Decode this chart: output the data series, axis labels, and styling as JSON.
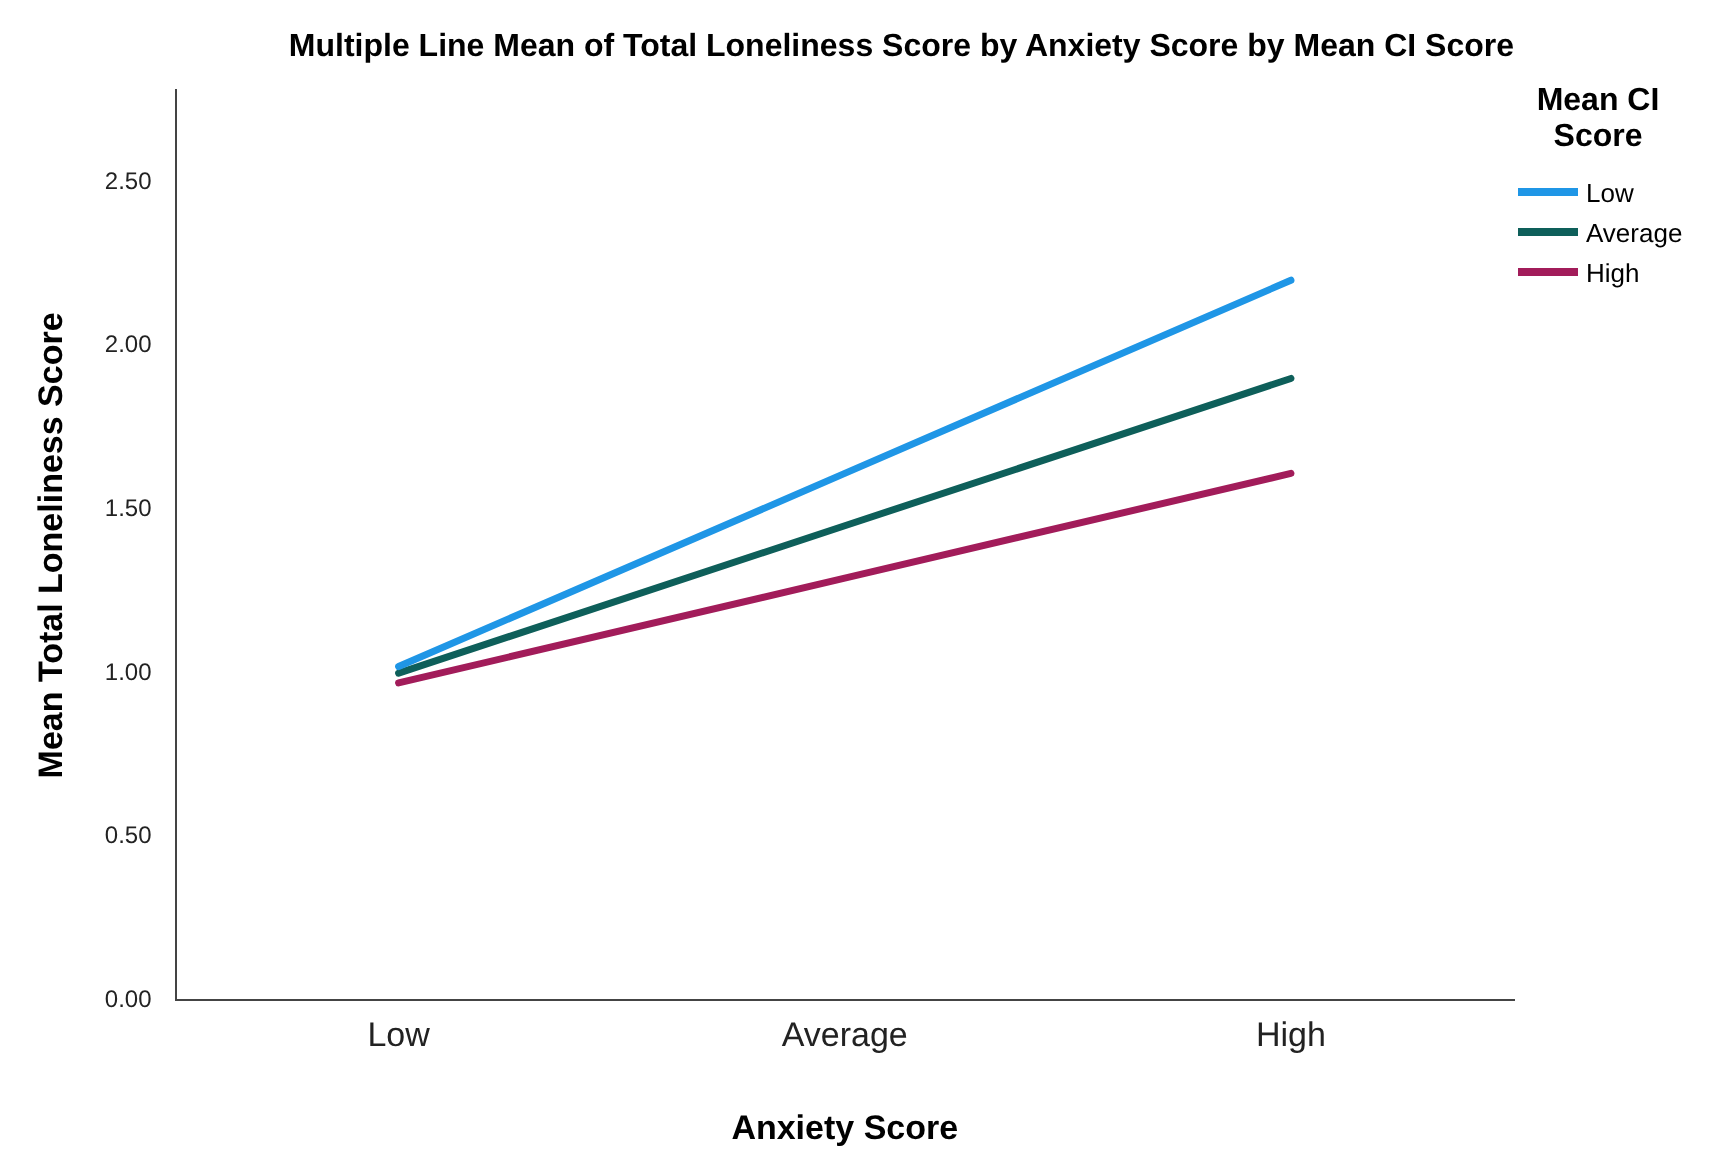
{
  "chart_data": {
    "type": "line",
    "title": "Multiple Line Mean of Total Loneliness Score by Anxiety Score by Mean CI Score",
    "xlabel": "Anxiety Score",
    "ylabel": "Mean Total Loneliness Score",
    "legend_title": "Mean CI Score",
    "categories": [
      "Low",
      "Average",
      "High"
    ],
    "series": [
      {
        "name": "Low",
        "color": "#1f96e6",
        "values": [
          1.02,
          1.61,
          2.2
        ]
      },
      {
        "name": "Average",
        "color": "#0e5f5a",
        "values": [
          1.0,
          1.45,
          1.9
        ]
      },
      {
        "name": "High",
        "color": "#a21c5a",
        "values": [
          0.97,
          1.29,
          1.61
        ]
      }
    ],
    "ylim": [
      0,
      2.78
    ],
    "yticks": [
      {
        "value": 0,
        "label": "0.00"
      },
      {
        "value": 0.5,
        "label": "0.50"
      },
      {
        "value": 1,
        "label": "1.00"
      },
      {
        "value": 1.5,
        "label": "1.50"
      },
      {
        "value": 2,
        "label": "2.00"
      },
      {
        "value": 2.5,
        "label": "2.50"
      }
    ],
    "grid": false,
    "legend": "top right",
    "marker": "none",
    "line_style": "solid"
  }
}
